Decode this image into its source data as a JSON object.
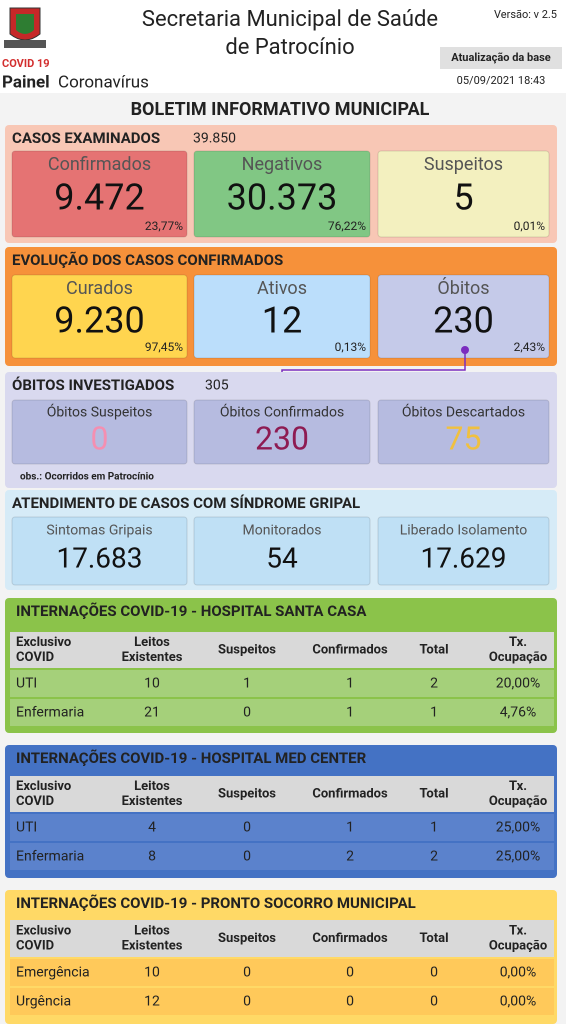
{
  "header": {
    "title_lines": [
      "Secretaria Municipal de Saúde",
      "de Patrocínio"
    ],
    "version": "Versão: v 2.5",
    "covid": "COVID 19",
    "painel": "Painel",
    "painel_sub": "Coronavírus",
    "update_label": "Atualização da base",
    "update_date": "05/09/2021 18:43"
  },
  "bulletin_title": "BOLETIM INFORMATIVO MUNICIPAL",
  "examined": {
    "title": "CASOS EXAMINADOS",
    "total": "39.850",
    "cards": [
      {
        "label": "Confirmados",
        "value": "9.472",
        "pct": "23,77%"
      },
      {
        "label": "Negativos",
        "value": "30.373",
        "pct": "76,22%"
      },
      {
        "label": "Suspeitos",
        "value": "5",
        "pct": "0,01%"
      }
    ]
  },
  "evolution": {
    "title": "EVOLUÇÃO DOS CASOS CONFIRMADOS",
    "cards": [
      {
        "label": "Curados",
        "value": "9.230",
        "pct": "97,45%"
      },
      {
        "label": "Ativos",
        "value": "12",
        "pct": "0,13%"
      },
      {
        "label": "Óbitos",
        "value": "230",
        "pct": "2,43%"
      }
    ]
  },
  "deaths": {
    "title": "ÓBITOS INVESTIGADOS",
    "total": "305",
    "cards": [
      {
        "label": "Óbitos Suspeitos",
        "value": "0"
      },
      {
        "label": "Óbitos Confirmados",
        "value": "230"
      },
      {
        "label": "Óbitos Descartados",
        "value": "75"
      }
    ],
    "note": "obs.: Ocorridos em Patrocínio"
  },
  "syndrome": {
    "title": "ATENDIMENTO DE CASOS COM SÍNDROME GRIPAL",
    "cards": [
      {
        "label": "Sintomas Gripais",
        "value": "17.683"
      },
      {
        "label": "Monitorados",
        "value": "54"
      },
      {
        "label": "Liberado Isolamento",
        "value": "17.629"
      }
    ]
  },
  "columns": [
    [
      "Exclusivo",
      "COVID"
    ],
    [
      "Leitos",
      "Existentes"
    ],
    [
      "Suspeitos"
    ],
    [
      "Confirmados"
    ],
    [
      "Total"
    ],
    [
      "Tx.",
      "Ocupação"
    ]
  ],
  "hospitals": [
    {
      "title": "INTERNAÇÕES COVID-19 - HOSPITAL SANTA CASA",
      "rows": [
        [
          "UTI",
          "10",
          "1",
          "1",
          "2",
          "20,00%"
        ],
        [
          "Enfermaria",
          "21",
          "0",
          "1",
          "1",
          "4,76%"
        ]
      ]
    },
    {
      "title": "INTERNAÇÕES COVID-19 - HOSPITAL MED CENTER",
      "rows": [
        [
          "UTI",
          "4",
          "0",
          "1",
          "1",
          "25,00%"
        ],
        [
          "Enfermaria",
          "8",
          "0",
          "2",
          "2",
          "25,00%"
        ]
      ]
    },
    {
      "title": "INTERNAÇÕES COVID-19 - PRONTO SOCORRO MUNICIPAL",
      "rows": [
        [
          "Emergência",
          "10",
          "0",
          "0",
          "0",
          "0,00%"
        ],
        [
          "Urgência",
          "12",
          "0",
          "0",
          "0",
          "0,00%"
        ]
      ]
    }
  ]
}
